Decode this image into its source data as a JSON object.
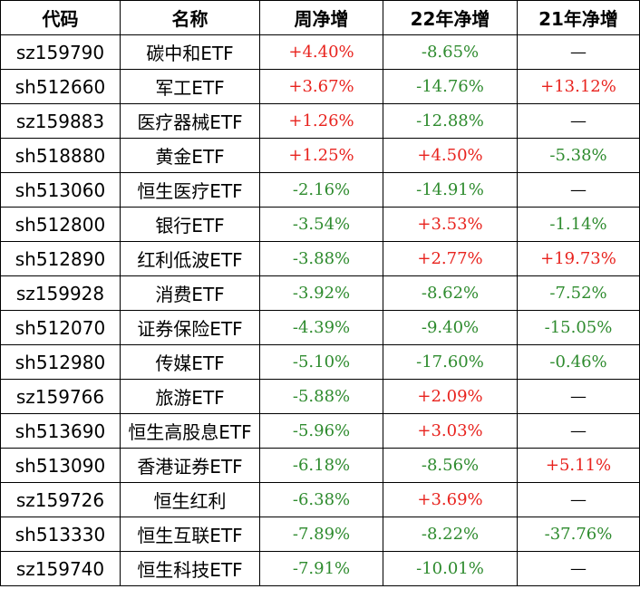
{
  "colors": {
    "positive": "#e8231e",
    "negative": "#2e8b2e",
    "none": "#000000"
  },
  "headers": [
    "代码",
    "名称",
    "周净增",
    "22年净增",
    "21年净增"
  ],
  "rows": [
    [
      "sz159790",
      "碳中和ETF",
      "+4.40%",
      "-8.65%",
      "—"
    ],
    [
      "sh512660",
      "军工ETF",
      "+3.67%",
      "-14.76%",
      "+13.12%"
    ],
    [
      "sz159883",
      "医疗器械ETF",
      "+1.26%",
      "-12.88%",
      "—"
    ],
    [
      "sh518880",
      "黄金ETF",
      "+1.25%",
      "+4.50%",
      "-5.38%"
    ],
    [
      "sh513060",
      "恒生医疗ETF",
      "-2.16%",
      "-14.91%",
      "—"
    ],
    [
      "sh512800",
      "银行ETF",
      "-3.54%",
      "+3.53%",
      "-1.14%"
    ],
    [
      "sh512890",
      "红利低波ETF",
      "-3.88%",
      "+2.77%",
      "+19.73%"
    ],
    [
      "sz159928",
      "消费ETF",
      "-3.92%",
      "-8.62%",
      "-7.52%"
    ],
    [
      "sh512070",
      "证券保险ETF",
      "-4.39%",
      "-9.40%",
      "-15.05%"
    ],
    [
      "sh512980",
      "传媒ETF",
      "-5.10%",
      "-17.60%",
      "-0.46%"
    ],
    [
      "sz159766",
      "旅游ETF",
      "-5.88%",
      "+2.09%",
      "—"
    ],
    [
      "sh513690",
      "恒生高股息ETF",
      "-5.96%",
      "+3.03%",
      "—"
    ],
    [
      "sh513090",
      "香港证券ETF",
      "-6.18%",
      "-8.56%",
      "+5.11%"
    ],
    [
      "sz159726",
      "恒生红利",
      "-6.38%",
      "+3.69%",
      "—"
    ],
    [
      "sh513330",
      "恒生互联ETF",
      "-7.89%",
      "-8.22%",
      "-37.76%"
    ],
    [
      "sz159740",
      "恒生科技ETF",
      "-7.91%",
      "-10.01%",
      "—"
    ]
  ]
}
